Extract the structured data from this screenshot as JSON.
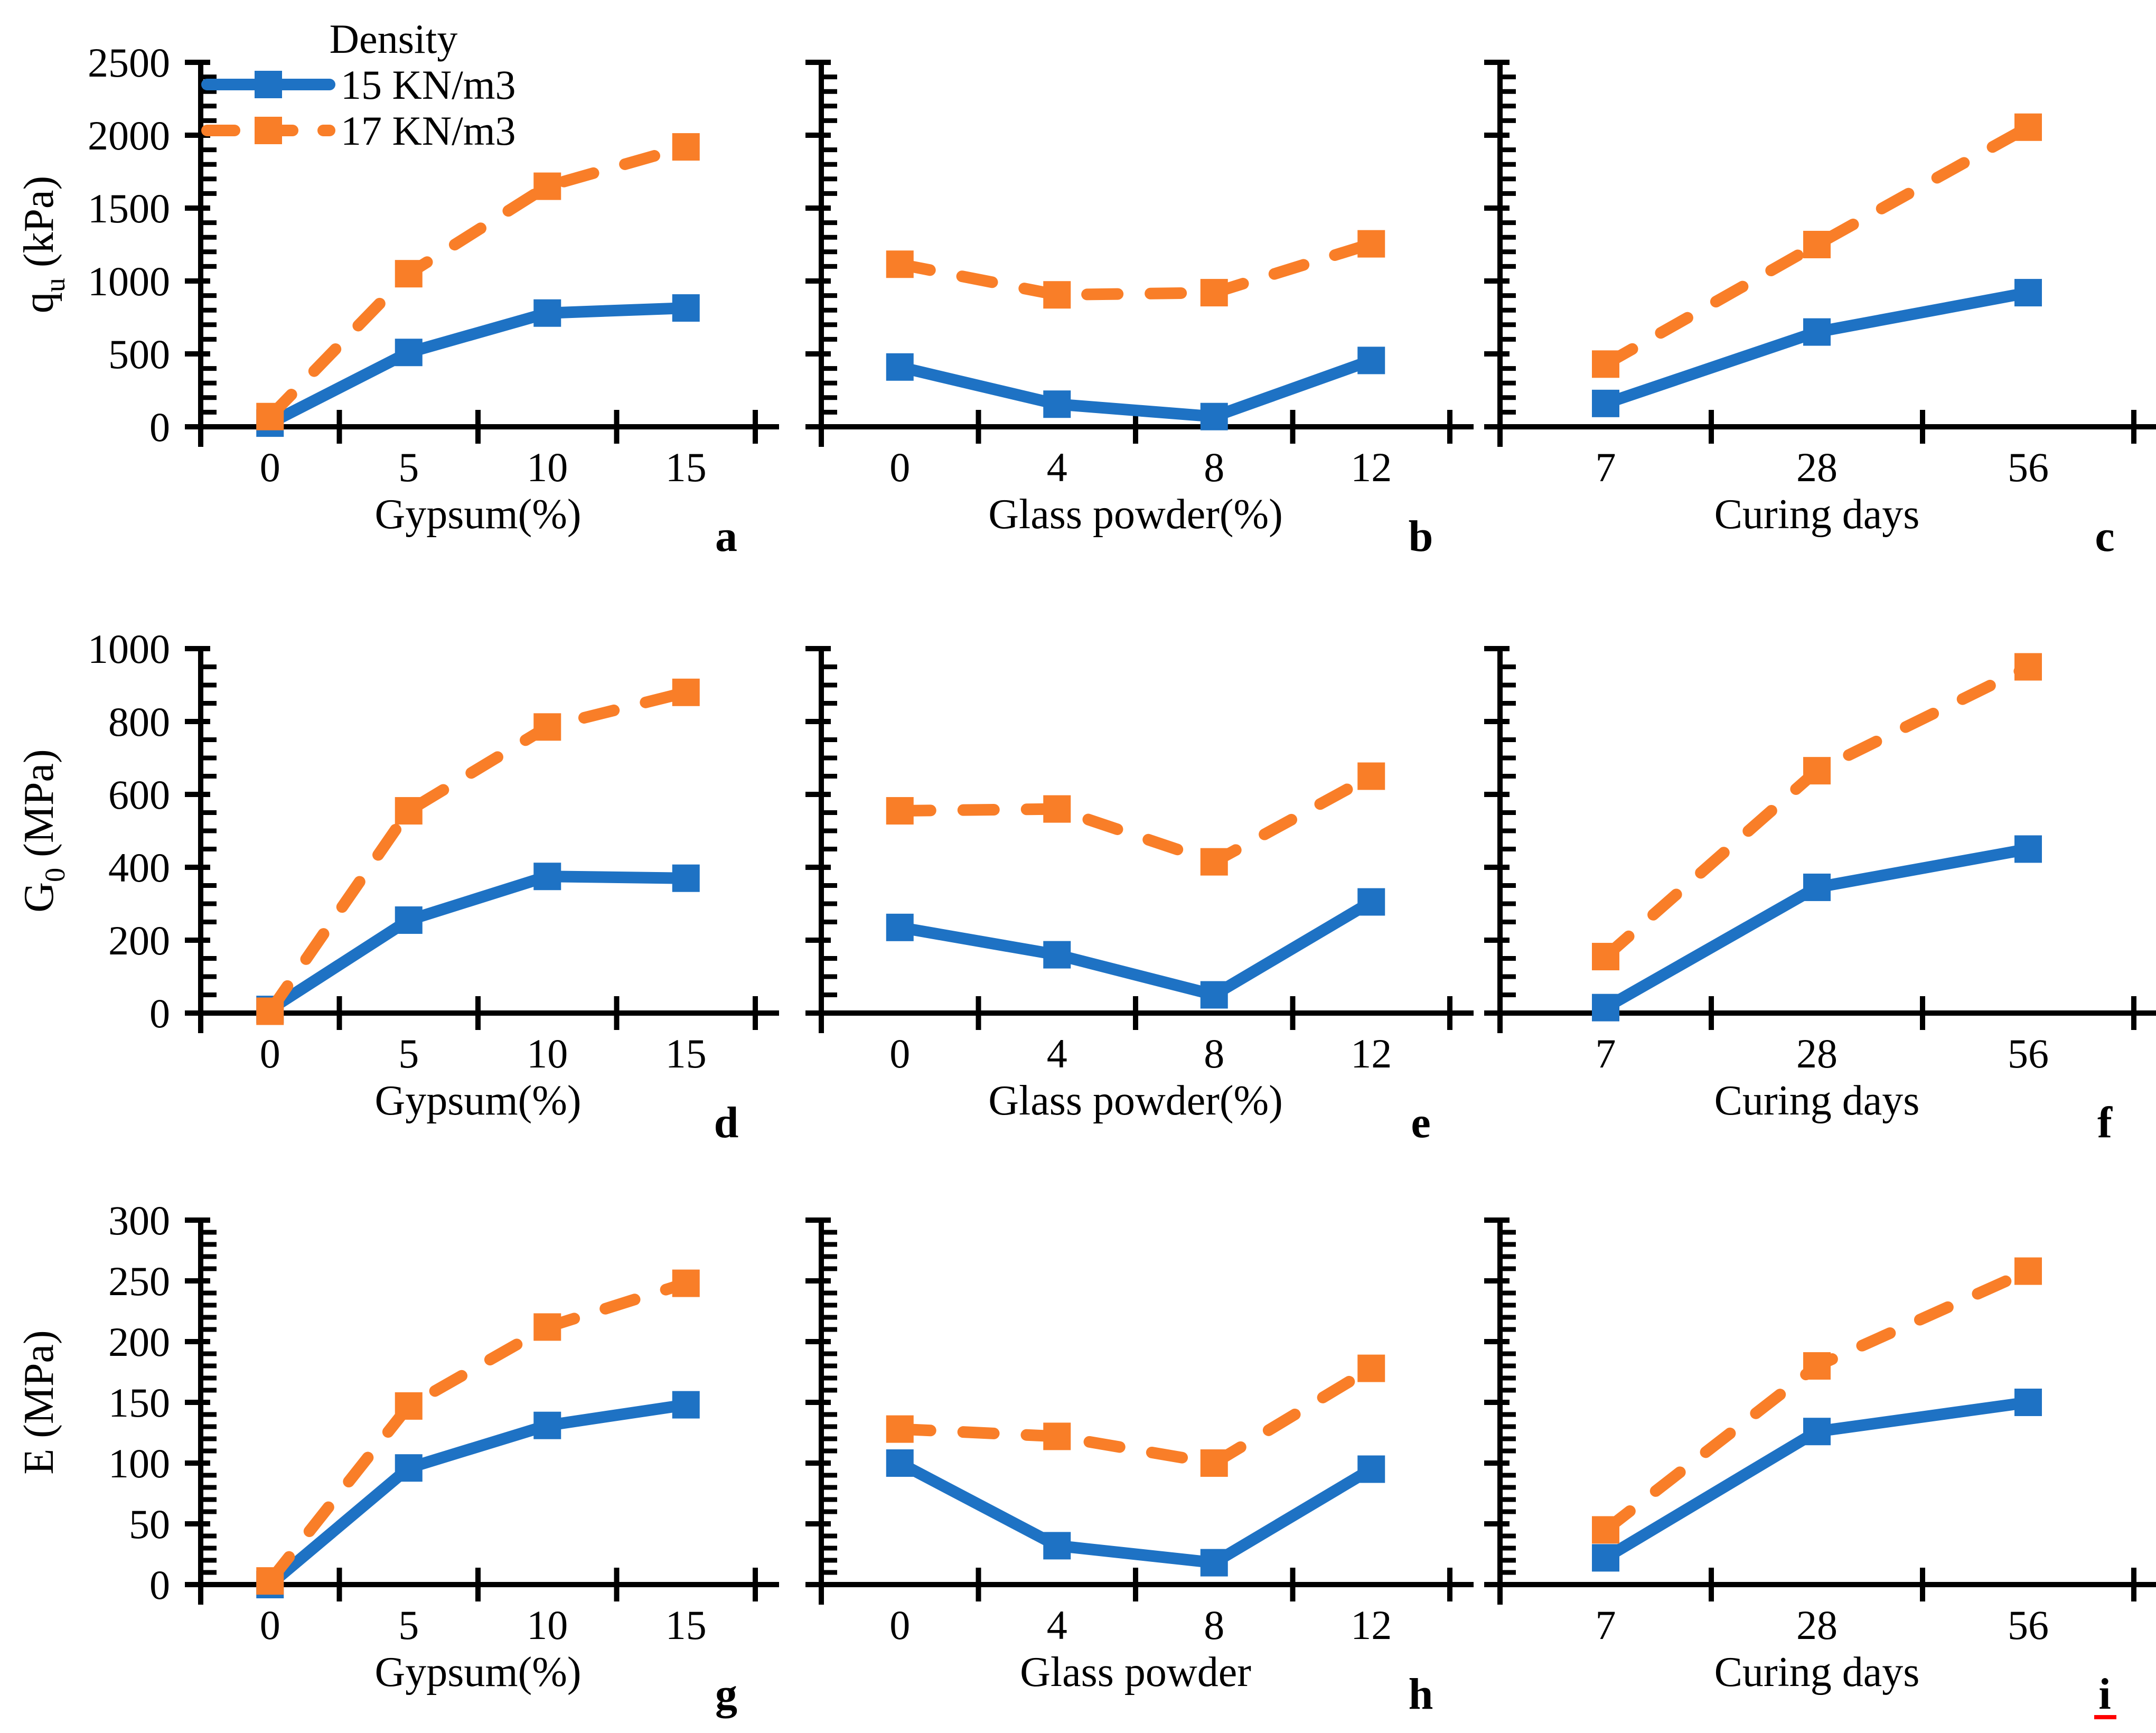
{
  "figure": {
    "legend": {
      "title": "Density",
      "entries": [
        {
          "label": "15 KN/m3",
          "series_key": "density15",
          "line_style": "solid"
        },
        {
          "label": "17 KN/m3",
          "series_key": "density17",
          "line_style": "dashed"
        }
      ]
    },
    "colors": {
      "density15": "#1E72C4",
      "density17": "#F97E28",
      "axis": "#000000",
      "text": "#000000",
      "letter_underline": "#FF0000",
      "background": "#FFFFFF"
    }
  },
  "chart_data": [
    {
      "panel": "a",
      "type": "line",
      "xlabel": "Gypsum(%)",
      "ylabel": "qu (kPa)",
      "ylabel_segments": [
        {
          "t": "q"
        },
        {
          "t": "u",
          "sub": true
        },
        {
          "t": " (kPa)"
        }
      ],
      "categories": [
        "0",
        "5",
        "10",
        "15"
      ],
      "ylim": [
        0,
        2500
      ],
      "y_major_step": 500,
      "y_minor_step": 100,
      "show_y_tick_labels": true,
      "y_tick_labels": [
        "0",
        "500",
        "1000",
        "1500",
        "2000",
        "2500"
      ],
      "legend_shown": true,
      "series": [
        {
          "name": "15 KN/m3",
          "values": [
            25,
            510,
            780,
            815
          ]
        },
        {
          "name": "17 KN/m3",
          "values": [
            70,
            1050,
            1650,
            1920
          ]
        }
      ],
      "letter_underline": false
    },
    {
      "panel": "b",
      "type": "line",
      "xlabel": "Glass powder(%)",
      "ylabel": "",
      "ylabel_segments": null,
      "categories": [
        "0",
        "4",
        "8",
        "12"
      ],
      "ylim": [
        0,
        2500
      ],
      "y_major_step": 500,
      "y_minor_step": 100,
      "show_y_tick_labels": false,
      "legend_shown": false,
      "series": [
        {
          "name": "15 KN/m3",
          "values": [
            410,
            155,
            70,
            455
          ]
        },
        {
          "name": "17 KN/m3",
          "values": [
            1115,
            905,
            920,
            1255
          ]
        }
      ],
      "letter_underline": false
    },
    {
      "panel": "c",
      "type": "line",
      "xlabel": "Curing days",
      "ylabel": "",
      "ylabel_segments": null,
      "categories": [
        "7",
        "28",
        "56"
      ],
      "ylim": [
        0,
        2500
      ],
      "y_major_step": 500,
      "y_minor_step": 100,
      "show_y_tick_labels": false,
      "legend_shown": false,
      "series": [
        {
          "name": "15 KN/m3",
          "values": [
            160,
            650,
            920
          ]
        },
        {
          "name": "17 KN/m3",
          "values": [
            430,
            1250,
            2055
          ]
        }
      ],
      "letter_underline": false
    },
    {
      "panel": "d",
      "type": "line",
      "xlabel": "Gypsum(%)",
      "ylabel": "G0 (MPa)",
      "ylabel_segments": [
        {
          "t": "G"
        },
        {
          "t": "0",
          "sub": true
        },
        {
          "t": " (MPa)"
        }
      ],
      "categories": [
        "0",
        "5",
        "10",
        "15"
      ],
      "ylim": [
        0,
        1000
      ],
      "y_major_step": 200,
      "y_minor_step": 50,
      "show_y_tick_labels": true,
      "y_tick_labels": [
        "0",
        "200",
        "400",
        "600",
        "800",
        "1000"
      ],
      "legend_shown": false,
      "series": [
        {
          "name": "15 KN/m3",
          "values": [
            10,
            255,
            375,
            370
          ]
        },
        {
          "name": "17 KN/m3",
          "values": [
            5,
            555,
            785,
            880
          ]
        }
      ],
      "letter_underline": false
    },
    {
      "panel": "e",
      "type": "line",
      "xlabel": "Glass powder(%)",
      "ylabel": "",
      "ylabel_segments": null,
      "categories": [
        "0",
        "4",
        "8",
        "12"
      ],
      "ylim": [
        0,
        1000
      ],
      "y_major_step": 200,
      "y_minor_step": 50,
      "show_y_tick_labels": false,
      "legend_shown": false,
      "series": [
        {
          "name": "15 KN/m3",
          "values": [
            235,
            160,
            50,
            305
          ]
        },
        {
          "name": "17 KN/m3",
          "values": [
            555,
            560,
            415,
            650
          ]
        }
      ],
      "letter_underline": false
    },
    {
      "panel": "f",
      "type": "line",
      "xlabel": "Curing days",
      "ylabel": "",
      "ylabel_segments": null,
      "categories": [
        "7",
        "28",
        "56"
      ],
      "ylim": [
        0,
        1000
      ],
      "y_major_step": 200,
      "y_minor_step": 50,
      "show_y_tick_labels": false,
      "legend_shown": false,
      "series": [
        {
          "name": "15 KN/m3",
          "values": [
            15,
            345,
            450
          ]
        },
        {
          "name": "17 KN/m3",
          "values": [
            155,
            665,
            950
          ]
        }
      ],
      "letter_underline": false
    },
    {
      "panel": "g",
      "type": "line",
      "xlabel": "Gypsum(%)",
      "ylabel": "E (MPa)",
      "ylabel_segments": [
        {
          "t": "E (MPa)"
        }
      ],
      "categories": [
        "0",
        "5",
        "10",
        "15"
      ],
      "ylim": [
        0,
        300
      ],
      "y_major_step": 50,
      "y_minor_step": 10,
      "show_y_tick_labels": true,
      "y_tick_labels": [
        "0",
        "50",
        "100",
        "150",
        "200",
        "250",
        "300"
      ],
      "legend_shown": false,
      "series": [
        {
          "name": "15 KN/m3",
          "values": [
            0,
            96,
            131,
            148
          ]
        },
        {
          "name": "17 KN/m3",
          "values": [
            3,
            147,
            212,
            248
          ]
        }
      ],
      "letter_underline": false
    },
    {
      "panel": "h",
      "type": "line",
      "xlabel": "Glass powder",
      "ylabel": "",
      "ylabel_segments": null,
      "categories": [
        "0",
        "4",
        "8",
        "12"
      ],
      "ylim": [
        0,
        300
      ],
      "y_major_step": 50,
      "y_minor_step": 10,
      "show_y_tick_labels": false,
      "legend_shown": false,
      "series": [
        {
          "name": "15 KN/m3",
          "values": [
            100,
            32,
            18,
            95
          ]
        },
        {
          "name": "17 KN/m3",
          "values": [
            128,
            122,
            100,
            178
          ]
        }
      ],
      "letter_underline": false
    },
    {
      "panel": "i",
      "type": "line",
      "xlabel": "Curing days",
      "ylabel": "",
      "ylabel_segments": null,
      "categories": [
        "7",
        "28",
        "56"
      ],
      "ylim": [
        0,
        300
      ],
      "y_major_step": 50,
      "y_minor_step": 10,
      "show_y_tick_labels": false,
      "legend_shown": false,
      "series": [
        {
          "name": "15 KN/m3",
          "values": [
            22,
            126,
            150
          ]
        },
        {
          "name": "17 KN/m3",
          "values": [
            45,
            180,
            258
          ]
        }
      ],
      "letter_underline": true
    }
  ]
}
